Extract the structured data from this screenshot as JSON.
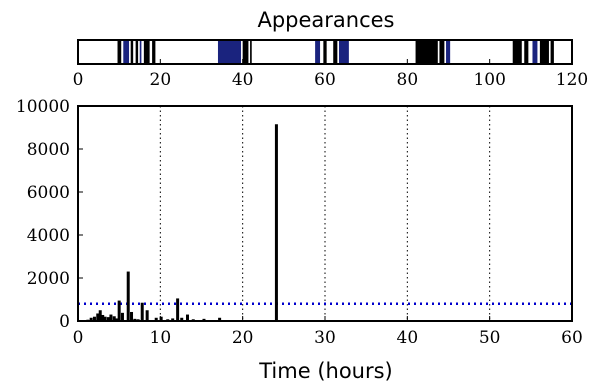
{
  "chart_data": [
    {
      "type": "heatmap",
      "title": "Appearances",
      "xlim": [
        0,
        120
      ],
      "x_ticks": [
        "0",
        "20",
        "40",
        "60",
        "80",
        "100",
        "120"
      ],
      "appearance_intervals": [
        [
          9.6,
          10.5
        ],
        [
          11.0,
          12.4
        ],
        [
          12.8,
          13.4
        ],
        [
          14.0,
          14.6
        ],
        [
          15.0,
          15.4
        ],
        [
          16.0,
          17.4
        ],
        [
          18.0,
          18.8
        ],
        [
          34.0,
          39.6
        ],
        [
          40.0,
          41.4
        ],
        [
          41.8,
          42.2
        ],
        [
          57.6,
          58.8
        ],
        [
          59.6,
          60.4
        ],
        [
          62.0,
          63.0
        ],
        [
          63.4,
          65.8
        ],
        [
          82.0,
          87.4
        ],
        [
          87.8,
          89.0
        ],
        [
          89.4,
          90.4
        ],
        [
          105.6,
          107.8
        ],
        [
          108.4,
          109.4
        ],
        [
          110.4,
          111.6
        ],
        [
          112.2,
          114.4
        ],
        [
          114.8,
          115.6
        ]
      ],
      "colors": {
        "bar": "#000000",
        "highlight": "#1a237e"
      }
    },
    {
      "type": "bar",
      "title": "",
      "xlabel": "Time (hours)",
      "ylabel": "",
      "xlim": [
        0,
        60
      ],
      "ylim": [
        0,
        10000
      ],
      "x_ticks": [
        "0",
        "10",
        "20",
        "30",
        "40",
        "50",
        "60"
      ],
      "y_ticks": [
        "0",
        "2000",
        "4000",
        "6000",
        "8000",
        "10000"
      ],
      "grid": "vertical dotted",
      "bar_color": "#000000",
      "threshold": {
        "value": 800,
        "color": "#0000cc"
      },
      "x": [
        0.8,
        1.2,
        1.6,
        2.0,
        2.4,
        2.7,
        3.0,
        3.3,
        3.7,
        4.0,
        4.4,
        4.7,
        5.0,
        5.4,
        6.1,
        6.5,
        6.9,
        7.3,
        7.8,
        8.4,
        9.5,
        10.1,
        10.9,
        11.5,
        12.1,
        12.6,
        13.3,
        14.0,
        15.3,
        17.2,
        24.1
      ],
      "values": [
        30,
        60,
        150,
        200,
        350,
        500,
        280,
        200,
        180,
        300,
        220,
        120,
        950,
        380,
        2300,
        420,
        100,
        80,
        850,
        500,
        150,
        200,
        80,
        120,
        1050,
        150,
        300,
        80,
        100,
        150,
        9150
      ]
    }
  ]
}
